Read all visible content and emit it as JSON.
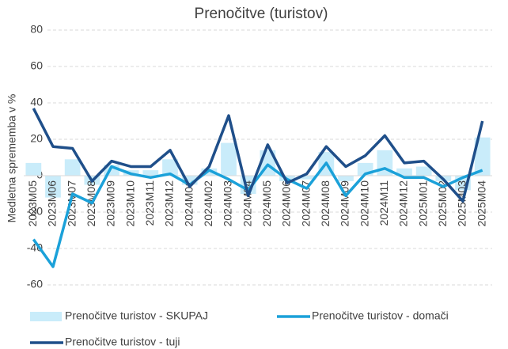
{
  "chart_data": {
    "type": "combo",
    "title": "Prenočitve (turistov)",
    "y_label": "Medletna sprememba v %",
    "categories": [
      "2023M05",
      "2023M06",
      "2023M07",
      "2023M08",
      "2023M09",
      "2023M10",
      "2023M11",
      "2023M12",
      "2024M01",
      "2024M02",
      "2024M03",
      "2024M04",
      "2024M05",
      "2024M06",
      "2024M07",
      "2024M08",
      "2024M09",
      "2024M10",
      "2024M11",
      "2024M12",
      "2025M01",
      "2025M02",
      "2025M03",
      "2025M04"
    ],
    "series": [
      {
        "name": "Prenočitve turistov - SKUPAJ",
        "type": "bar",
        "color": "#c9ecfa",
        "values": [
          7,
          -12,
          9,
          -5,
          6,
          3,
          3,
          9,
          -5,
          4,
          18,
          -10,
          14,
          -3,
          -2,
          13,
          -3,
          7,
          14,
          4,
          5,
          -3,
          -8,
          21
        ]
      },
      {
        "name": "Prenočitve turistov - domači",
        "type": "line",
        "color": "#1ba1d9",
        "values": [
          -35,
          -50,
          -10,
          -15,
          5,
          1,
          -1,
          1,
          -5,
          3,
          -2,
          -8,
          6,
          -2,
          -7,
          7,
          -11,
          1,
          4,
          -1,
          -1,
          -6,
          -1,
          3
        ]
      },
      {
        "name": "Prenočitve turistov - tuji",
        "type": "line",
        "color": "#1f4f8a",
        "values": [
          37,
          16,
          15,
          -3,
          8,
          5,
          5,
          14,
          -6,
          5,
          33,
          -11,
          17,
          -4,
          1,
          16,
          5,
          11,
          22,
          7,
          8,
          -2,
          -14,
          30
        ]
      }
    ],
    "ylim": [
      -70,
      80
    ],
    "yticks": [
      -60,
      -40,
      -20,
      0,
      20,
      40,
      60,
      80
    ],
    "grid": true
  }
}
